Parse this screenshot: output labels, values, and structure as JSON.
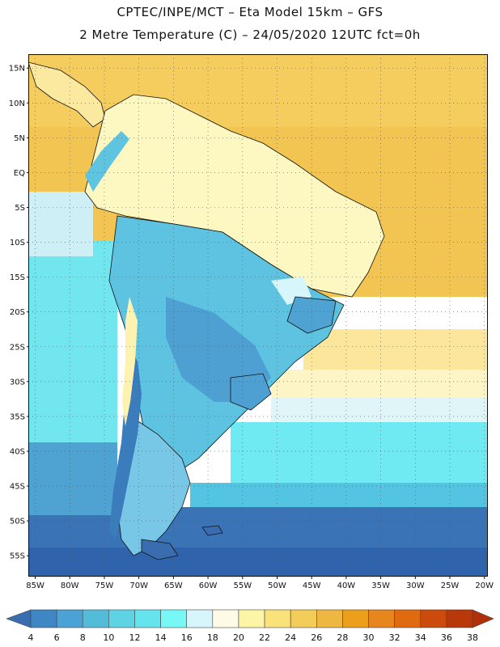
{
  "header": {
    "line1": "CPTEC/INPE/MCT –  Eta Model 15km – GFS",
    "line2": "2 Metre Temperature (C) – 24/05/2020 12UTC fct=0h"
  },
  "map": {
    "lon_range": [
      -86,
      -19.5
    ],
    "lat_range": [
      -58,
      17
    ],
    "lat_ticks": [
      {
        "value": 15,
        "label": "15N"
      },
      {
        "value": 10,
        "label": "10N"
      },
      {
        "value": 5,
        "label": "5N"
      },
      {
        "value": 0,
        "label": "EQ"
      },
      {
        "value": -5,
        "label": "5S"
      },
      {
        "value": -10,
        "label": "10S"
      },
      {
        "value": -15,
        "label": "15S"
      },
      {
        "value": -20,
        "label": "20S"
      },
      {
        "value": -25,
        "label": "25S"
      },
      {
        "value": -30,
        "label": "30S"
      },
      {
        "value": -35,
        "label": "35S"
      },
      {
        "value": -40,
        "label": "40S"
      },
      {
        "value": -45,
        "label": "45S"
      },
      {
        "value": -50,
        "label": "50S"
      },
      {
        "value": -55,
        "label": "55S"
      }
    ],
    "lon_ticks": [
      {
        "value": -85,
        "label": "85W"
      },
      {
        "value": -80,
        "label": "80W"
      },
      {
        "value": -75,
        "label": "75W"
      },
      {
        "value": -70,
        "label": "70W"
      },
      {
        "value": -65,
        "label": "65W"
      },
      {
        "value": -60,
        "label": "60W"
      },
      {
        "value": -55,
        "label": "55W"
      },
      {
        "value": -50,
        "label": "50W"
      },
      {
        "value": -45,
        "label": "45W"
      },
      {
        "value": -40,
        "label": "40W"
      },
      {
        "value": -35,
        "label": "35W"
      },
      {
        "value": -30,
        "label": "30W"
      },
      {
        "value": -25,
        "label": "25W"
      },
      {
        "value": -20,
        "label": "20W"
      }
    ],
    "grid": true
  },
  "colorbar": {
    "labels": [
      "4",
      "6",
      "8",
      "10",
      "12",
      "14",
      "16",
      "18",
      "20",
      "22",
      "24",
      "26",
      "28",
      "30",
      "32",
      "34",
      "36",
      "38"
    ],
    "colors": [
      "#3b6fb2",
      "#3f86c4",
      "#4aa3d4",
      "#53bcd8",
      "#5dd3e3",
      "#64e5ed",
      "#78f7f7",
      "#d6f6fb",
      "#fefae6",
      "#fdf5a6",
      "#f9e27a",
      "#f3cd5a",
      "#eeb742",
      "#ec9f1a",
      "#e6861c",
      "#e06a10",
      "#cc4a0a",
      "#b8380a"
    ],
    "under_color": "#3a6db0",
    "over_color": "#b0300a"
  },
  "legend": {
    "ocean_warm": "#f2c451",
    "ocean_tropical": "#f7d76c",
    "ocean_subtropical": "#fdf2b0",
    "ocean_cool": "#6fe9f2",
    "ocean_cold": "#3a74b6",
    "land_warm": "#fdf7c2",
    "land_mild": "#5dc3e0",
    "land_cool": "#4e9fd2",
    "andes_cold": "#3a7cbc",
    "boundary": "#111111"
  }
}
